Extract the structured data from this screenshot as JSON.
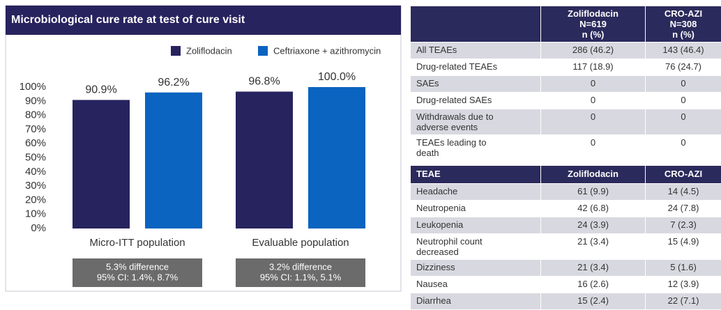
{
  "chart_data": {
    "type": "bar",
    "title": "Microbiological cure rate at test of cure visit",
    "categories": [
      "Micro-ITT population",
      "Evaluable population"
    ],
    "series": [
      {
        "name": "Zoliflodacin",
        "color": "#27235e",
        "values": [
          90.9,
          96.8
        ],
        "value_labels": [
          "90.9%",
          "96.8%"
        ]
      },
      {
        "name": "Ceftriaxone + azithromycin",
        "color": "#0a64c0",
        "values": [
          96.2,
          100.0
        ],
        "value_labels": [
          "96.2%",
          "100.0%"
        ]
      }
    ],
    "ylim": [
      0,
      100
    ],
    "yticks": [
      {
        "value": 0,
        "label": "0%"
      },
      {
        "value": 10,
        "label": "10%"
      },
      {
        "value": 20,
        "label": "20%"
      },
      {
        "value": 30,
        "label": "30%"
      },
      {
        "value": 40,
        "label": "40%"
      },
      {
        "value": 50,
        "label": "50%"
      },
      {
        "value": 60,
        "label": "60%"
      },
      {
        "value": 70,
        "label": "70%"
      },
      {
        "value": 80,
        "label": "80%"
      },
      {
        "value": 90,
        "label": "90%"
      },
      {
        "value": 100,
        "label": "100%"
      }
    ],
    "legend": "upper right",
    "annotations": [
      {
        "lines": [
          "5.3% difference",
          "95% CI: 1.4%, 8.7%"
        ]
      },
      {
        "lines": [
          "3.2% difference",
          "95% CI: 1.1%, 5.1%"
        ]
      }
    ]
  },
  "safety_table": {
    "header": [
      [
        "Zoliflodacin",
        "N=619",
        "n (%)"
      ],
      [
        "CRO-AZI",
        "N=308",
        "n (%)"
      ]
    ],
    "rows": [
      [
        "All TEAEs",
        "286 (46.2)",
        "143 (46.4)"
      ],
      [
        "Drug-related TEAEs",
        "117 (18.9)",
        "76 (24.7)"
      ],
      [
        "SAEs",
        "0",
        "0"
      ],
      [
        "Drug-related SAEs",
        "0",
        "0"
      ],
      [
        "Withdrawals due to adverse events",
        "0",
        "0"
      ],
      [
        "TEAEs leading to death",
        "0",
        "0"
      ]
    ]
  },
  "teae_table": {
    "header": [
      "TEAE",
      "Zoliflodacin",
      "CRO-AZI"
    ],
    "rows": [
      [
        "Headache",
        "61 (9.9)",
        "14 (4.5)"
      ],
      [
        "Neutropenia",
        "42 (6.8)",
        "24 (7.8)"
      ],
      [
        "Leukopenia",
        "24 (3.9)",
        "7 (2.3)"
      ],
      [
        "Neutrophil count decreased",
        "21 (3.4)",
        "15 (4.9)"
      ],
      [
        "Dizziness",
        "21 (3.4)",
        "5 (1.6)"
      ],
      [
        "Nausea",
        "16 (2.6)",
        "12 (3.9)"
      ],
      [
        "Diarrhea",
        "15 (2.4)",
        "22 (7.1)"
      ]
    ]
  }
}
